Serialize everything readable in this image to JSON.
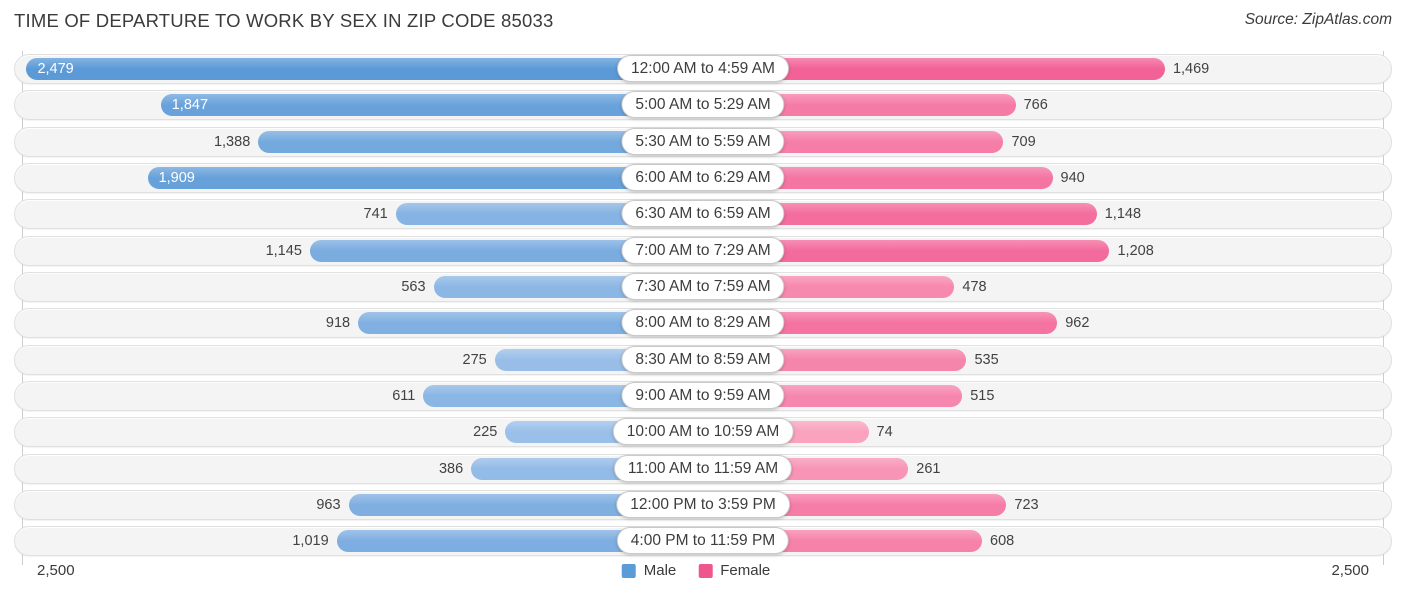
{
  "header": {
    "title": "TIME OF DEPARTURE TO WORK BY SEX IN ZIP CODE 85033",
    "source": "Source: ZipAtlas.com"
  },
  "legend": {
    "male_label": "Male",
    "female_label": "Female"
  },
  "axis": {
    "left_max_label": "2,500",
    "right_max_label": "2,500"
  },
  "colors": {
    "male_legend": "#5b9bd8",
    "female_legend": "#f0568e",
    "male_light": "#aecbee",
    "male_dark": "#5b9ad7",
    "female_light": "#fbafc6",
    "female_dark": "#ef4585",
    "track": "#f4f4f4"
  },
  "chart_data": {
    "type": "bar",
    "variant": "diverging-horizontal-pyramid",
    "title": "TIME OF DEPARTURE TO WORK BY SEX IN ZIP CODE 85033",
    "categories": [
      "12:00 AM to 4:59 AM",
      "5:00 AM to 5:29 AM",
      "5:30 AM to 5:59 AM",
      "6:00 AM to 6:29 AM",
      "6:30 AM to 6:59 AM",
      "7:00 AM to 7:29 AM",
      "7:30 AM to 7:59 AM",
      "8:00 AM to 8:29 AM",
      "8:30 AM to 8:59 AM",
      "9:00 AM to 9:59 AM",
      "10:00 AM to 10:59 AM",
      "11:00 AM to 11:59 AM",
      "12:00 PM to 3:59 PM",
      "4:00 PM to 11:59 PM"
    ],
    "series": [
      {
        "name": "Male",
        "values": [
          2479,
          1847,
          1388,
          1909,
          741,
          1145,
          563,
          918,
          275,
          611,
          225,
          386,
          963,
          1019
        ]
      },
      {
        "name": "Female",
        "values": [
          1469,
          766,
          709,
          940,
          1148,
          1208,
          478,
          962,
          535,
          515,
          74,
          261,
          723,
          608
        ]
      }
    ],
    "value_display": {
      "male": [
        "2,479",
        "1,847",
        "1,388",
        "1,909",
        "741",
        "1,145",
        "563",
        "918",
        "275",
        "611",
        "225",
        "386",
        "963",
        "1,019"
      ],
      "female": [
        "1,469",
        "766",
        "709",
        "940",
        "1,148",
        "1,208",
        "478",
        "962",
        "535",
        "515",
        "74",
        "261",
        "723",
        "608"
      ]
    },
    "axis_max": 2500,
    "xlim": [
      -2500,
      2500
    ],
    "legend_position": "bottom-center",
    "grid": false
  }
}
